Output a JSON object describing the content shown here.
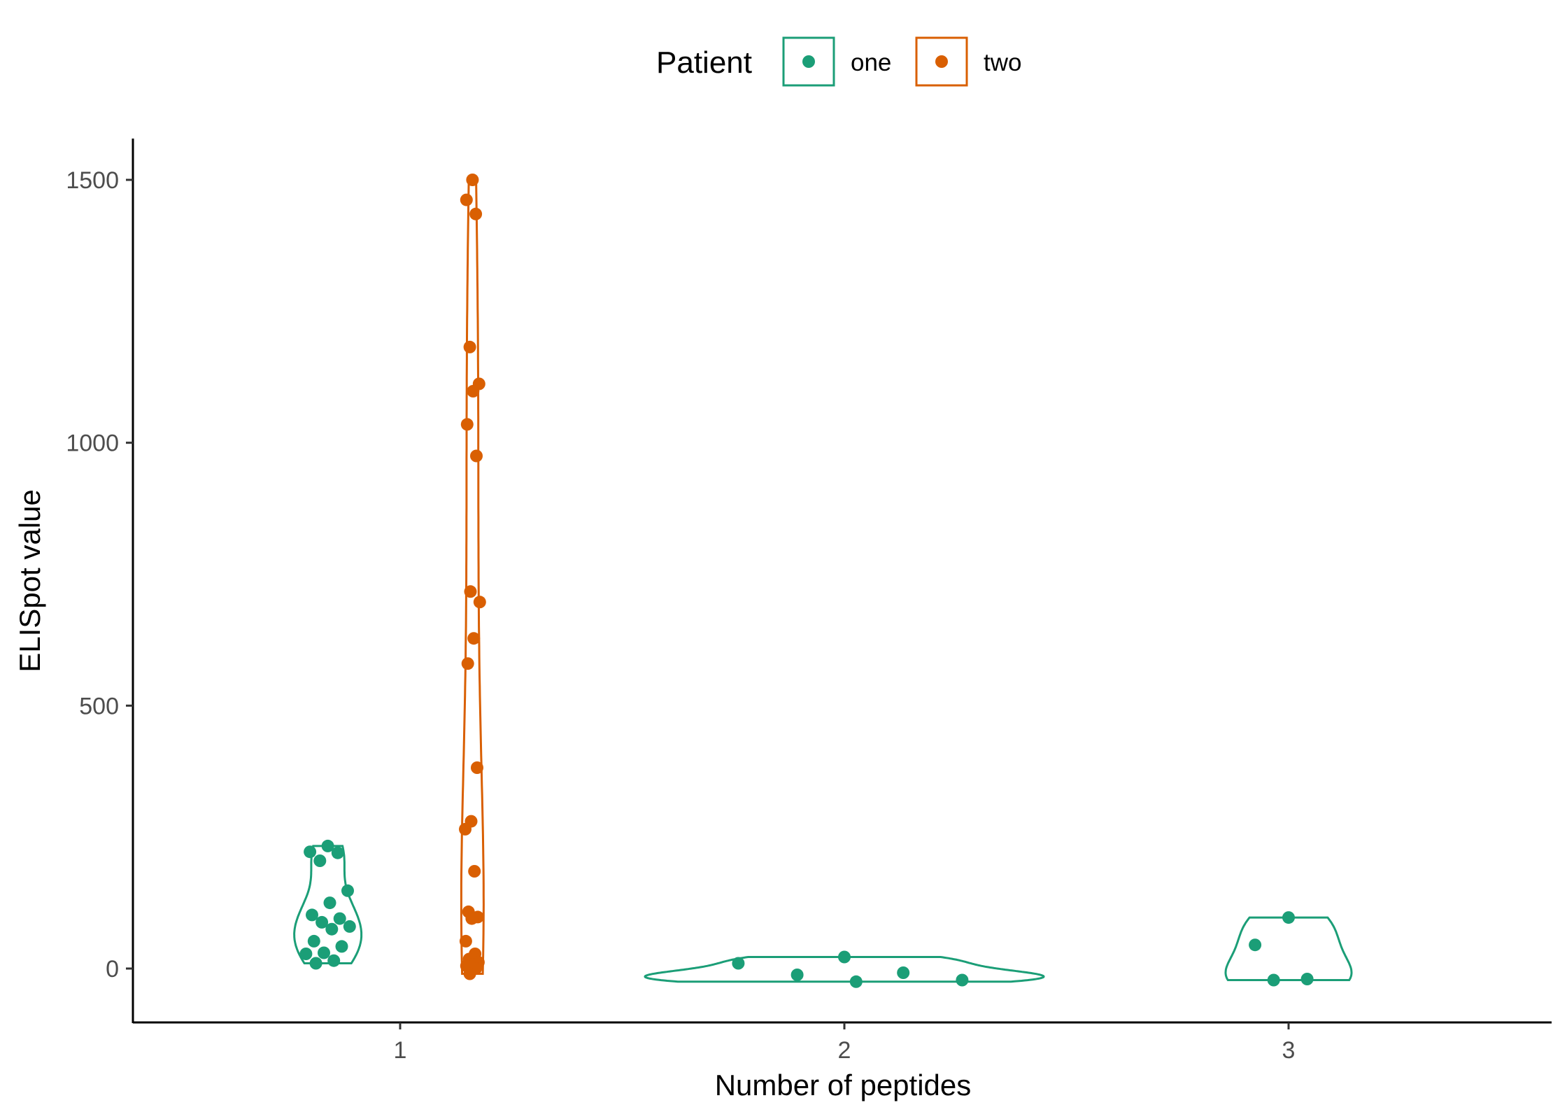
{
  "chart_data": {
    "type": "violin",
    "title": "",
    "xlabel": "Number of peptides",
    "ylabel": "ELISpot value",
    "categories": [
      "1",
      "2",
      "3"
    ],
    "x_ticks": [
      "1",
      "2",
      "3"
    ],
    "y_ticks": [
      0,
      500,
      1000,
      1500
    ],
    "ylim": [
      -100,
      1570
    ],
    "grid": false,
    "legend": {
      "title": "Patient",
      "position": "top",
      "entries": [
        "one",
        "two"
      ]
    },
    "colors": {
      "one": "#1b9e77",
      "two": "#d95f02"
    },
    "series": [
      {
        "name": "one",
        "color": "#1b9e77",
        "groups": [
          {
            "category": "1",
            "values": [
              233,
              222,
              220,
              205,
              148,
              125,
              102,
              95,
              88,
              80,
              75,
              52,
              42,
              30,
              28,
              15,
              10
            ]
          },
          {
            "category": "2",
            "values": [
              22,
              10,
              -8,
              -12,
              -22,
              -25
            ]
          },
          {
            "category": "3",
            "values": [
              97,
              45,
              -20,
              -22
            ]
          }
        ]
      },
      {
        "name": "two",
        "color": "#d95f02",
        "groups": [
          {
            "category": "1",
            "values": [
              1500,
              1462,
              1435,
              1182,
              1112,
              1098,
              1035,
              975,
              717,
              697,
              628,
              580,
              382,
              280,
              265,
              185,
              108,
              98,
              95,
              52,
              28,
              18,
              12,
              8,
              5,
              0,
              -10
            ]
          }
        ]
      }
    ]
  }
}
